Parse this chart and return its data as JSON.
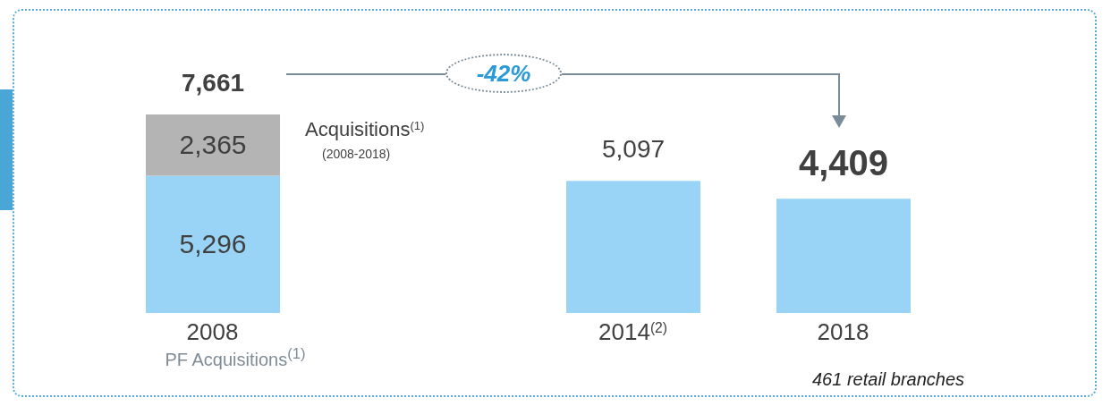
{
  "chart_data": {
    "type": "bar",
    "stacked": true,
    "categories": [
      "2008",
      null,
      "2014$^{(2)}$",
      "2018"
    ],
    "series": [
      {
        "color": "#99d4f6",
        "values": [
          5296,
          null,
          5097,
          4409
        ],
        "value_labels": [
          "5,296",
          null,
          null,
          null
        ]
      },
      {
        "name": "Acquisitions$^{(1)}$",
        "color": "#b4b4b4",
        "values": [
          2365,
          null,
          null,
          null
        ],
        "value_labels": [
          "2,365",
          null,
          null,
          null
        ]
      }
    ],
    "totals": [
      "7,661",
      null,
      "5,097",
      "4,409"
    ],
    "annotations": [
      "(2008-2018)",
      "PF Acquisitions$^{(1)}$",
      "-42%",
      "461 retail branches"
    ]
  }
}
